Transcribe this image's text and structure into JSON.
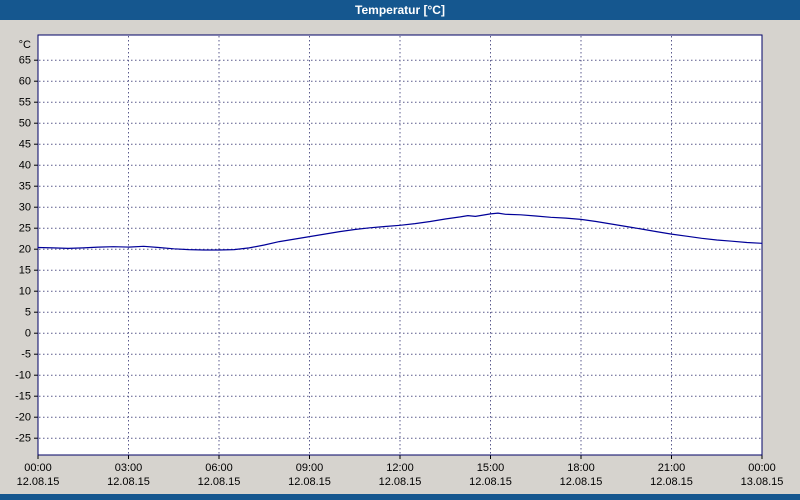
{
  "window": {
    "title": "Temperatur [°C]"
  },
  "colors": {
    "titlebar_bg": "#15578f",
    "titlebar_text": "#ffffff",
    "page_bg": "#d6d3ce",
    "plot_bg": "#ffffff",
    "plot_border": "#000066",
    "grid": "#5a5a8c",
    "line": "#000099",
    "axis_text": "#000000"
  },
  "chart_data": {
    "type": "line",
    "title": "Temperatur [°C]",
    "xlabel": "",
    "ylabel": "°C",
    "grid": true,
    "legend": "none",
    "x_axis": {
      "tick_hours": [
        0,
        3,
        6,
        9,
        12,
        15,
        18,
        21,
        24
      ],
      "tick_times": [
        "00:00",
        "03:00",
        "06:00",
        "09:00",
        "12:00",
        "15:00",
        "18:00",
        "21:00",
        "00:00"
      ],
      "tick_dates": [
        "12.08.15",
        "12.08.15",
        "12.08.15",
        "12.08.15",
        "12.08.15",
        "12.08.15",
        "12.08.15",
        "12.08.15",
        "13.08.15"
      ]
    },
    "y_axis": {
      "unit": "°C",
      "ticks": [
        65,
        60,
        55,
        50,
        45,
        40,
        35,
        30,
        25,
        20,
        15,
        10,
        5,
        0,
        -5,
        -10,
        -15,
        -20,
        -25
      ],
      "range": [
        -29,
        71
      ]
    },
    "series": [
      {
        "name": "Temperatur",
        "color": "#000099",
        "x_hours": [
          0,
          0.5,
          1,
          1.5,
          2,
          2.5,
          3,
          3.5,
          4,
          4.5,
          5,
          5.5,
          6,
          6.5,
          7,
          7.5,
          8,
          8.5,
          9,
          9.5,
          10,
          10.5,
          11,
          11.5,
          12,
          12.5,
          13,
          13.5,
          14,
          14.25,
          14.5,
          15,
          15.25,
          15.5,
          16,
          16.5,
          17,
          17.5,
          18,
          18.5,
          19,
          19.5,
          20,
          20.5,
          21,
          21.5,
          22,
          22.5,
          23,
          23.5,
          24
        ],
        "values": [
          20.4,
          20.3,
          20.2,
          20.3,
          20.5,
          20.6,
          20.5,
          20.7,
          20.4,
          20.1,
          19.9,
          19.8,
          19.8,
          19.9,
          20.3,
          21.0,
          21.8,
          22.4,
          23.0,
          23.6,
          24.2,
          24.7,
          25.1,
          25.4,
          25.7,
          26.1,
          26.6,
          27.2,
          27.7,
          28.0,
          27.8,
          28.4,
          28.6,
          28.3,
          28.2,
          27.9,
          27.6,
          27.4,
          27.1,
          26.6,
          26.0,
          25.4,
          24.8,
          24.2,
          23.6,
          23.1,
          22.6,
          22.2,
          21.9,
          21.6,
          21.4
        ]
      }
    ]
  }
}
